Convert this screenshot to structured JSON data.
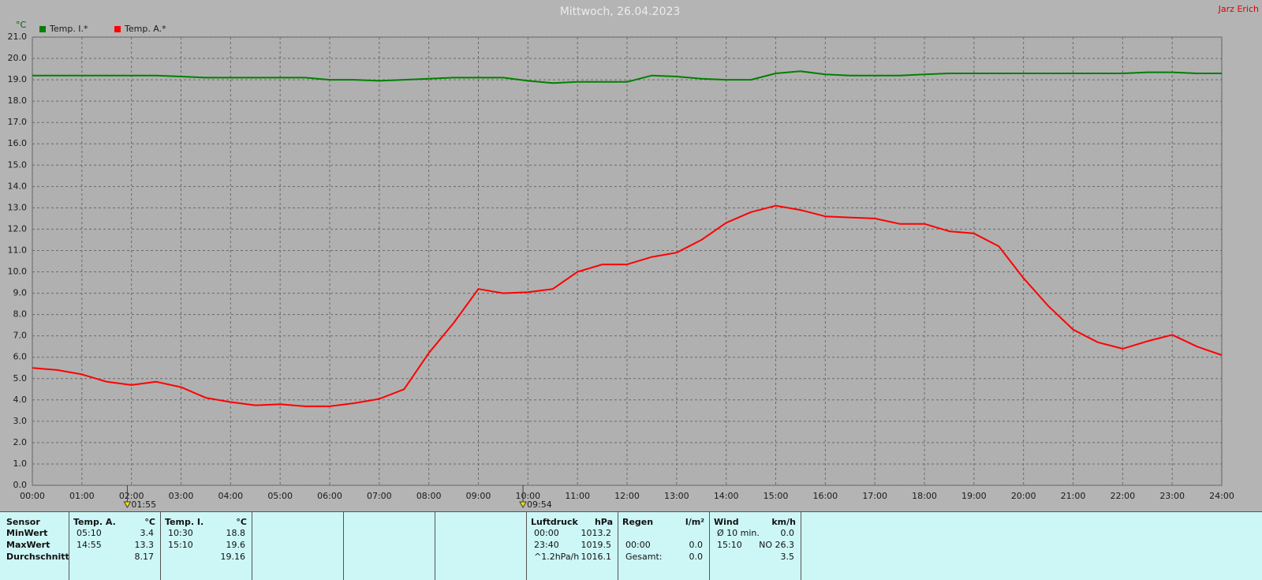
{
  "chart_data": {
    "type": "line",
    "title": "Mittwoch, 26.04.2023",
    "author": "Jarz Erich",
    "y_unit": "°C",
    "x": [
      0,
      0.5,
      1,
      1.5,
      2,
      2.5,
      3,
      3.5,
      4,
      4.5,
      5,
      5.5,
      6,
      6.5,
      7,
      7.5,
      8,
      8.5,
      9,
      9.5,
      10,
      10.5,
      11,
      11.5,
      12,
      12.5,
      13,
      13.5,
      14,
      14.5,
      15,
      15.5,
      16,
      16.5,
      17,
      17.5,
      18,
      18.5,
      19,
      19.5,
      20,
      20.5,
      21,
      21.5,
      22,
      22.5,
      23,
      23.5,
      24
    ],
    "series": [
      {
        "name": "Temp. I.*",
        "color": "#008000",
        "values": [
          19.2,
          19.2,
          19.2,
          19.2,
          19.2,
          19.2,
          19.15,
          19.1,
          19.1,
          19.1,
          19.1,
          19.1,
          19.0,
          19.0,
          18.95,
          19.0,
          19.05,
          19.1,
          19.1,
          19.1,
          18.95,
          18.85,
          18.9,
          18.9,
          18.9,
          19.2,
          19.15,
          19.05,
          19.0,
          19.0,
          19.3,
          19.4,
          19.25,
          19.2,
          19.2,
          19.2,
          19.25,
          19.3,
          19.3,
          19.3,
          19.3,
          19.3,
          19.3,
          19.3,
          19.3,
          19.35,
          19.35,
          19.3,
          19.3
        ]
      },
      {
        "name": "Temp. A.*",
        "color": "#ff0000",
        "values": [
          5.5,
          5.4,
          5.2,
          4.85,
          4.7,
          4.85,
          4.6,
          4.1,
          3.9,
          3.75,
          3.8,
          3.7,
          3.7,
          3.85,
          4.05,
          4.5,
          6.2,
          7.6,
          9.2,
          9.0,
          9.05,
          9.2,
          10.0,
          10.35,
          10.35,
          10.7,
          10.9,
          11.5,
          12.3,
          12.8,
          13.1,
          12.9,
          12.6,
          12.55,
          12.5,
          12.25,
          12.25,
          11.9,
          11.8,
          11.2,
          9.7,
          8.4,
          7.3,
          6.7,
          6.4,
          6.75,
          7.05,
          6.5,
          6.1
        ]
      }
    ],
    "xlim": [
      0,
      24
    ],
    "ylim": [
      0,
      21
    ],
    "xticks": [
      {
        "value": 0,
        "label": "00:00"
      },
      {
        "value": 1,
        "label": "01:00"
      },
      {
        "value": 2,
        "label": "02:00"
      },
      {
        "value": 3,
        "label": "03:00"
      },
      {
        "value": 4,
        "label": "04:00"
      },
      {
        "value": 5,
        "label": "05:00"
      },
      {
        "value": 6,
        "label": "06:00"
      },
      {
        "value": 7,
        "label": "07:00"
      },
      {
        "value": 8,
        "label": "08:00"
      },
      {
        "value": 9,
        "label": "09:00"
      },
      {
        "value": 10,
        "label": "10:00"
      },
      {
        "value": 11,
        "label": "11:00"
      },
      {
        "value": 12,
        "label": "12:00"
      },
      {
        "value": 13,
        "label": "13:00"
      },
      {
        "value": 14,
        "label": "14:00"
      },
      {
        "value": 15,
        "label": "15:00"
      },
      {
        "value": 16,
        "label": "16:00"
      },
      {
        "value": 17,
        "label": "17:00"
      },
      {
        "value": 18,
        "label": "18:00"
      },
      {
        "value": 19,
        "label": "19:00"
      },
      {
        "value": 20,
        "label": "20:00"
      },
      {
        "value": 21,
        "label": "21:00"
      },
      {
        "value": 22,
        "label": "22:00"
      },
      {
        "value": 23,
        "label": "23:00"
      },
      {
        "value": 24,
        "label": "24:00"
      }
    ],
    "yticks": [
      {
        "value": 0,
        "label": "0.0"
      },
      {
        "value": 1,
        "label": "1.0"
      },
      {
        "value": 2,
        "label": "2.0"
      },
      {
        "value": 3,
        "label": "3.0"
      },
      {
        "value": 4,
        "label": "4.0"
      },
      {
        "value": 5,
        "label": "5.0"
      },
      {
        "value": 6,
        "label": "6.0"
      },
      {
        "value": 7,
        "label": "7.0"
      },
      {
        "value": 8,
        "label": "8.0"
      },
      {
        "value": 9,
        "label": "9.0"
      },
      {
        "value": 10,
        "label": "10.0"
      },
      {
        "value": 11,
        "label": "11.0"
      },
      {
        "value": 12,
        "label": "12.0"
      },
      {
        "value": 13,
        "label": "13.0"
      },
      {
        "value": 14,
        "label": "14.0"
      },
      {
        "value": 15,
        "label": "15.0"
      },
      {
        "value": 16,
        "label": "16.0"
      },
      {
        "value": 17,
        "label": "17.0"
      },
      {
        "value": 18,
        "label": "18.0"
      },
      {
        "value": 19,
        "label": "19.0"
      },
      {
        "value": 20,
        "label": "20.0"
      },
      {
        "value": 21,
        "label": "21.0"
      }
    ],
    "markers": [
      {
        "x": 1.9167,
        "label": "01:55"
      },
      {
        "x": 9.9,
        "label": "09:54"
      }
    ],
    "grid": true
  },
  "table": {
    "row_labels": [
      "Sensor",
      "MinWert",
      "MaxWert",
      "Durchschnitt"
    ],
    "groups": [
      {
        "header": [
          "Temp. A.",
          "°C"
        ],
        "rows": [
          [
            "05:10",
            "3.4"
          ],
          [
            "14:55",
            "13.3"
          ],
          [
            null,
            "8.17"
          ]
        ]
      },
      {
        "header": [
          "Temp. I.",
          "°C"
        ],
        "rows": [
          [
            "10:30",
            "18.8"
          ],
          [
            "15:10",
            "19.6"
          ],
          [
            null,
            "19.16"
          ]
        ]
      },
      {
        "header": [
          null,
          null
        ],
        "rows": [
          [
            null,
            null
          ],
          [
            null,
            null
          ],
          [
            null,
            null
          ]
        ]
      },
      {
        "header": [
          null,
          null
        ],
        "rows": [
          [
            null,
            null
          ],
          [
            null,
            null
          ],
          [
            null,
            null
          ]
        ]
      },
      {
        "header": [
          null,
          null
        ],
        "rows": [
          [
            null,
            null
          ],
          [
            null,
            null
          ],
          [
            null,
            null
          ]
        ]
      },
      {
        "header": [
          "Luftdruck",
          "hPa"
        ],
        "rows": [
          [
            "00:00",
            "1013.2"
          ],
          [
            "23:40",
            "1019.5"
          ],
          [
            "^1.2hPa/h",
            "1016.1"
          ]
        ]
      },
      {
        "header": [
          "Regen",
          "l/m²"
        ],
        "rows": [
          [
            null,
            null
          ],
          [
            "00:00",
            "0.0"
          ],
          [
            "Gesamt:",
            "0.0"
          ]
        ]
      },
      {
        "header": [
          "Wind",
          "km/h"
        ],
        "rows": [
          [
            "Ø 10 min.",
            "0.0"
          ],
          [
            "15:10",
            "NO 26.3"
          ],
          [
            null,
            "3.5"
          ]
        ]
      }
    ]
  }
}
